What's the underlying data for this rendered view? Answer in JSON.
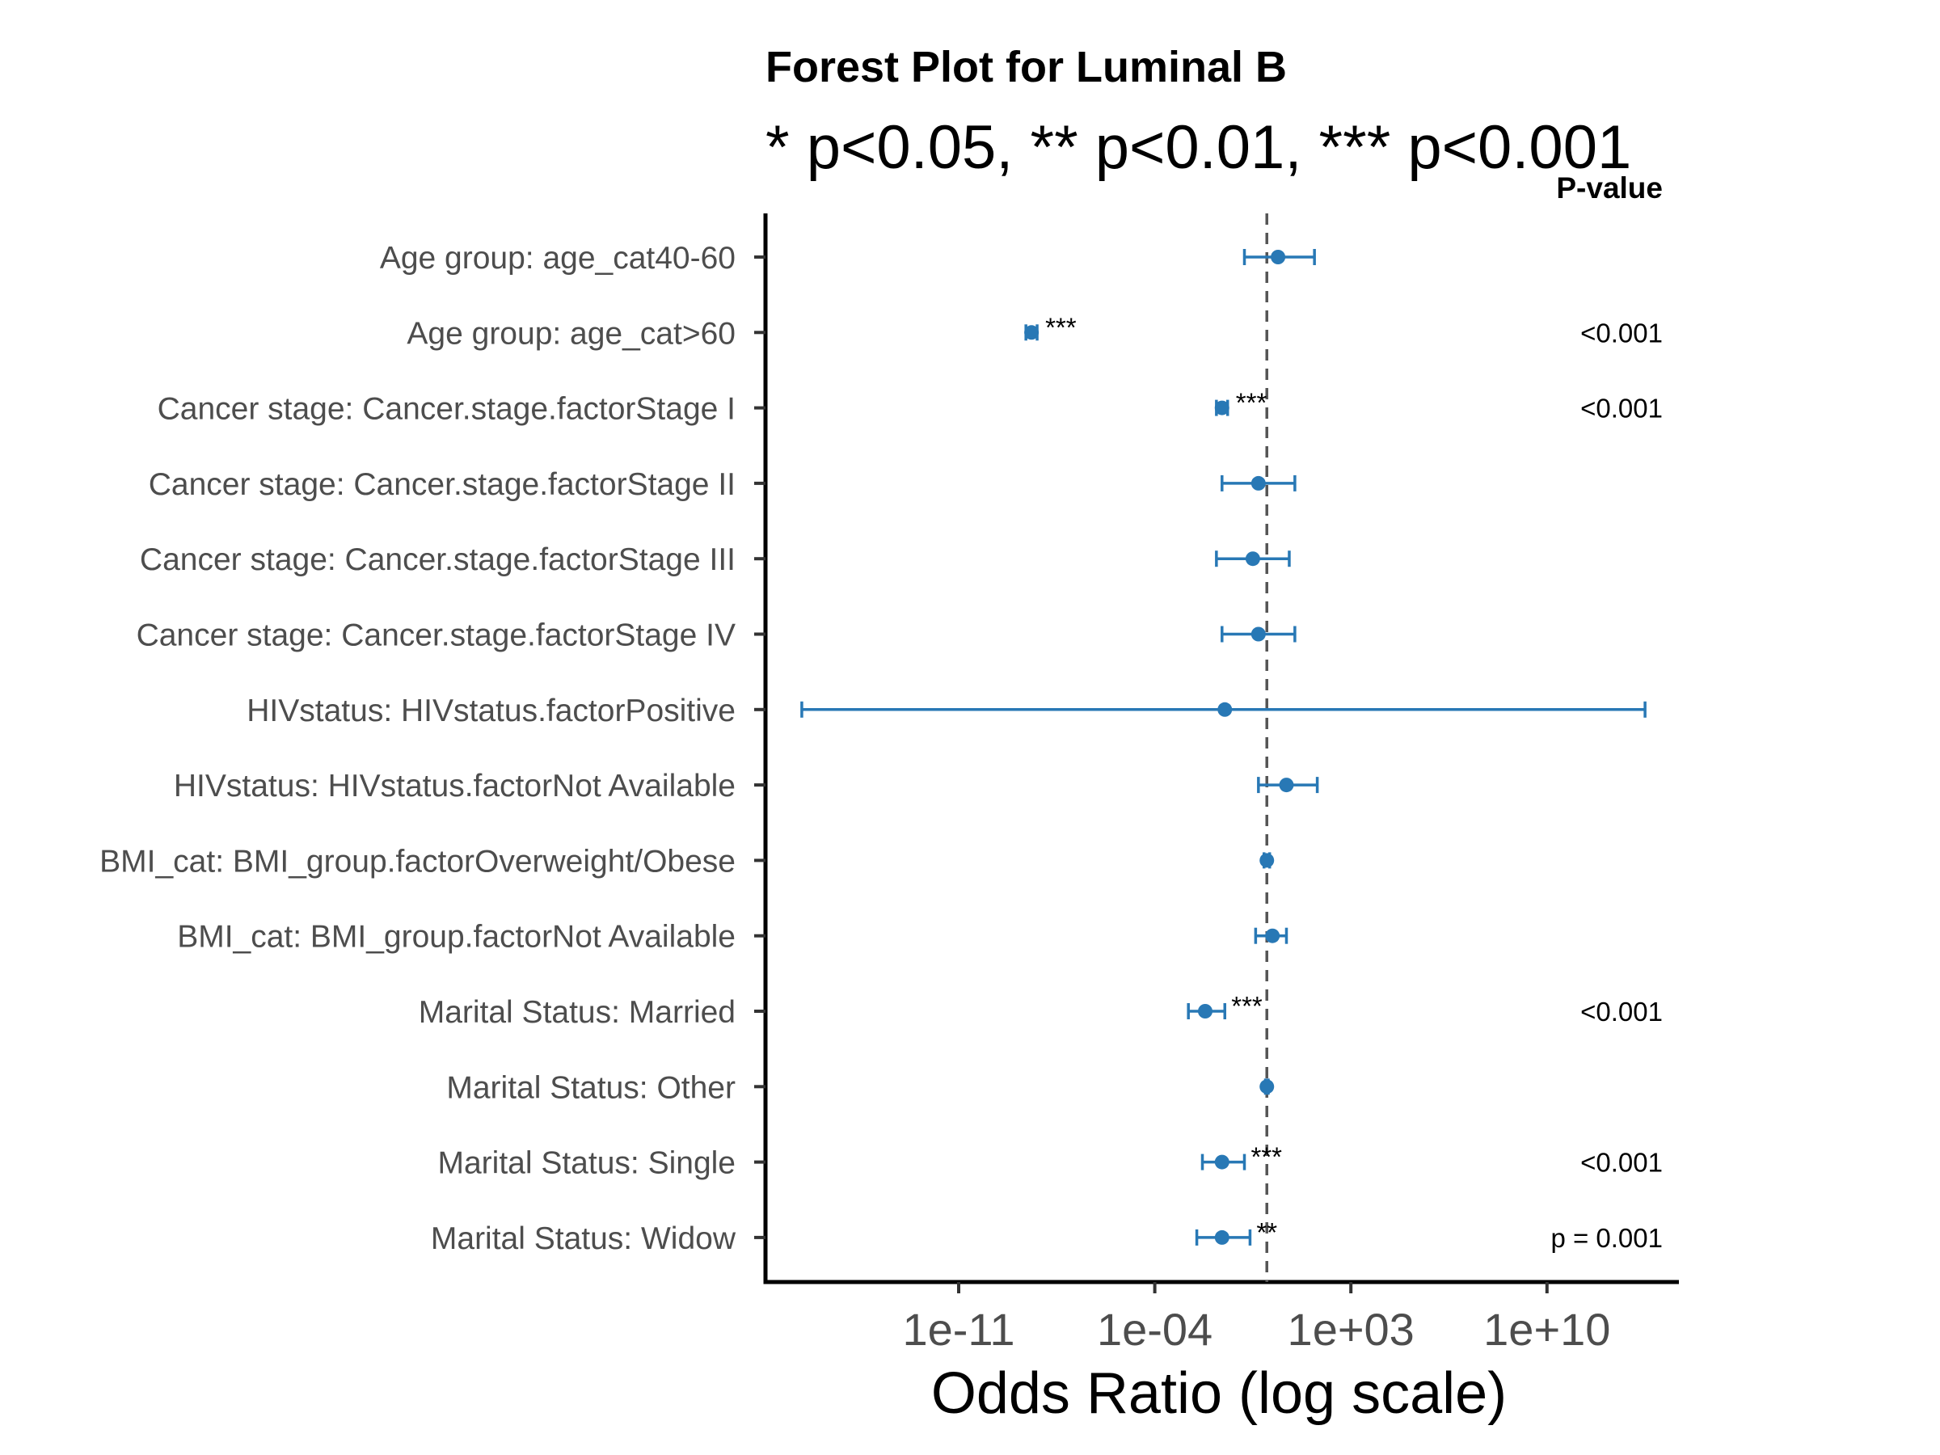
{
  "chart_data": {
    "type": "forest",
    "title": "Forest Plot for Luminal B",
    "subtitle": "* p<0.05, ** p<0.01, *** p<0.001",
    "xlabel": "Odds Ratio (log scale)",
    "ylabel": "",
    "x_scale": "log10",
    "xlim_log10": [
      -18,
      16
    ],
    "x_ticks": [
      {
        "log10": -11,
        "label": "1e-11"
      },
      {
        "log10": -4,
        "label": "1e-04"
      },
      {
        "log10": 3,
        "label": "1e+03"
      },
      {
        "log10": 10,
        "label": "1e+10"
      }
    ],
    "reference_line_log10": 0,
    "pvalue_header": "P-value",
    "grid": false,
    "color": "#2878b5",
    "rows": [
      {
        "label": "Age group: age_cat40-60",
        "or_log10": 0.4,
        "lo_log10": -0.8,
        "hi_log10": 1.7,
        "sig": "",
        "p": ""
      },
      {
        "label": "Age group: age_cat>60",
        "or_log10": -8.4,
        "lo_log10": -8.6,
        "hi_log10": -8.2,
        "sig": "***",
        "p": "<0.001"
      },
      {
        "label": "Cancer stage: Cancer.stage.factorStage I",
        "or_log10": -1.6,
        "lo_log10": -1.8,
        "hi_log10": -1.4,
        "sig": "***",
        "p": "<0.001"
      },
      {
        "label": "Cancer stage: Cancer.stage.factorStage II",
        "or_log10": -0.3,
        "lo_log10": -1.6,
        "hi_log10": 1.0,
        "sig": "",
        "p": ""
      },
      {
        "label": "Cancer stage: Cancer.stage.factorStage III",
        "or_log10": -0.5,
        "lo_log10": -1.8,
        "hi_log10": 0.8,
        "sig": "",
        "p": ""
      },
      {
        "label": "Cancer stage: Cancer.stage.factorStage IV",
        "or_log10": -0.3,
        "lo_log10": -1.6,
        "hi_log10": 1.0,
        "sig": "",
        "p": ""
      },
      {
        "label": "HIVstatus: HIVstatus.factorPositive",
        "or_log10": -1.5,
        "lo_log10": -16.6,
        "hi_log10": 13.5,
        "sig": "",
        "p": ""
      },
      {
        "label": "HIVstatus: HIVstatus.factorNot Available",
        "or_log10": 0.7,
        "lo_log10": -0.3,
        "hi_log10": 1.8,
        "sig": "",
        "p": ""
      },
      {
        "label": "BMI_cat: BMI_group.factorOverweight/Obese",
        "or_log10": 0.0,
        "lo_log10": -0.1,
        "hi_log10": 0.1,
        "sig": "",
        "p": ""
      },
      {
        "label": "BMI_cat: BMI_group.factorNot Available",
        "or_log10": 0.2,
        "lo_log10": -0.4,
        "hi_log10": 0.7,
        "sig": "",
        "p": ""
      },
      {
        "label": "Marital Status: Married",
        "or_log10": -2.2,
        "lo_log10": -2.8,
        "hi_log10": -1.5,
        "sig": "***",
        "p": "<0.001"
      },
      {
        "label": "Marital Status: Other",
        "or_log10": 0.0,
        "lo_log10": -0.05,
        "hi_log10": 0.05,
        "sig": "",
        "p": ""
      },
      {
        "label": "Marital Status: Single",
        "or_log10": -1.6,
        "lo_log10": -2.3,
        "hi_log10": -0.8,
        "sig": "***",
        "p": "<0.001"
      },
      {
        "label": "Marital Status: Widow",
        "or_log10": -1.6,
        "lo_log10": -2.5,
        "hi_log10": -0.6,
        "sig": "**",
        "p": "p = 0.001"
      }
    ]
  }
}
